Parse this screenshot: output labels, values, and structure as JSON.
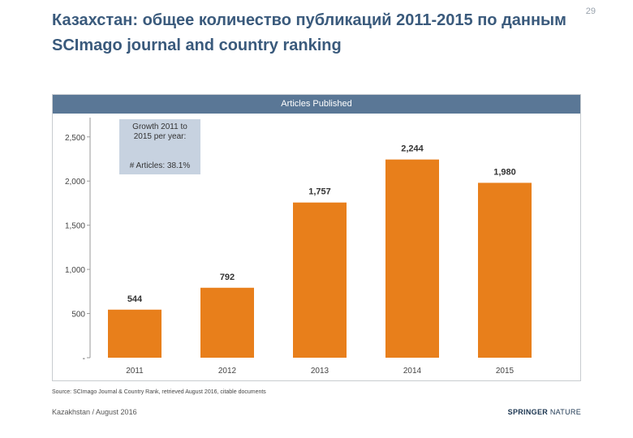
{
  "slide": {
    "title_line1": "Казахстан: общее количество публикаций 2011-2015 по данным",
    "title_line2": "SCImago journal and country ranking",
    "page_number": "29"
  },
  "growth_box": {
    "title": "Growth 2011 to 2015 per year:",
    "value": "# Articles:  38.1%"
  },
  "footer": {
    "source": "Source: SCImago Journal & Country Rank, retrieved August 2016, citable documents",
    "left": "Kazakhstan / August 2016",
    "brand_part1": "SPRINGER",
    "brand_part2": " NATURE"
  },
  "colors": {
    "bar": "#e87f1b",
    "header": "#5a7796",
    "title": "#3a5a7c",
    "growth_box": "#c7d2e0"
  },
  "chart_data": {
    "type": "bar",
    "title": "Articles Published",
    "categories": [
      "2011",
      "2012",
      "2013",
      "2014",
      "2015"
    ],
    "values": [
      544,
      792,
      1757,
      2244,
      1980
    ],
    "value_labels": [
      "544",
      "792",
      "1,757",
      "2,244",
      "1,980"
    ],
    "ylim": [
      0,
      2700
    ],
    "yticks": [
      0,
      500,
      1000,
      1500,
      2000,
      2500
    ],
    "ytick_labels": [
      "-",
      "500",
      "1,000",
      "1,500",
      "2,000",
      "2,500"
    ],
    "xlabel": "",
    "ylabel": "",
    "grid": false,
    "legend": "none"
  }
}
